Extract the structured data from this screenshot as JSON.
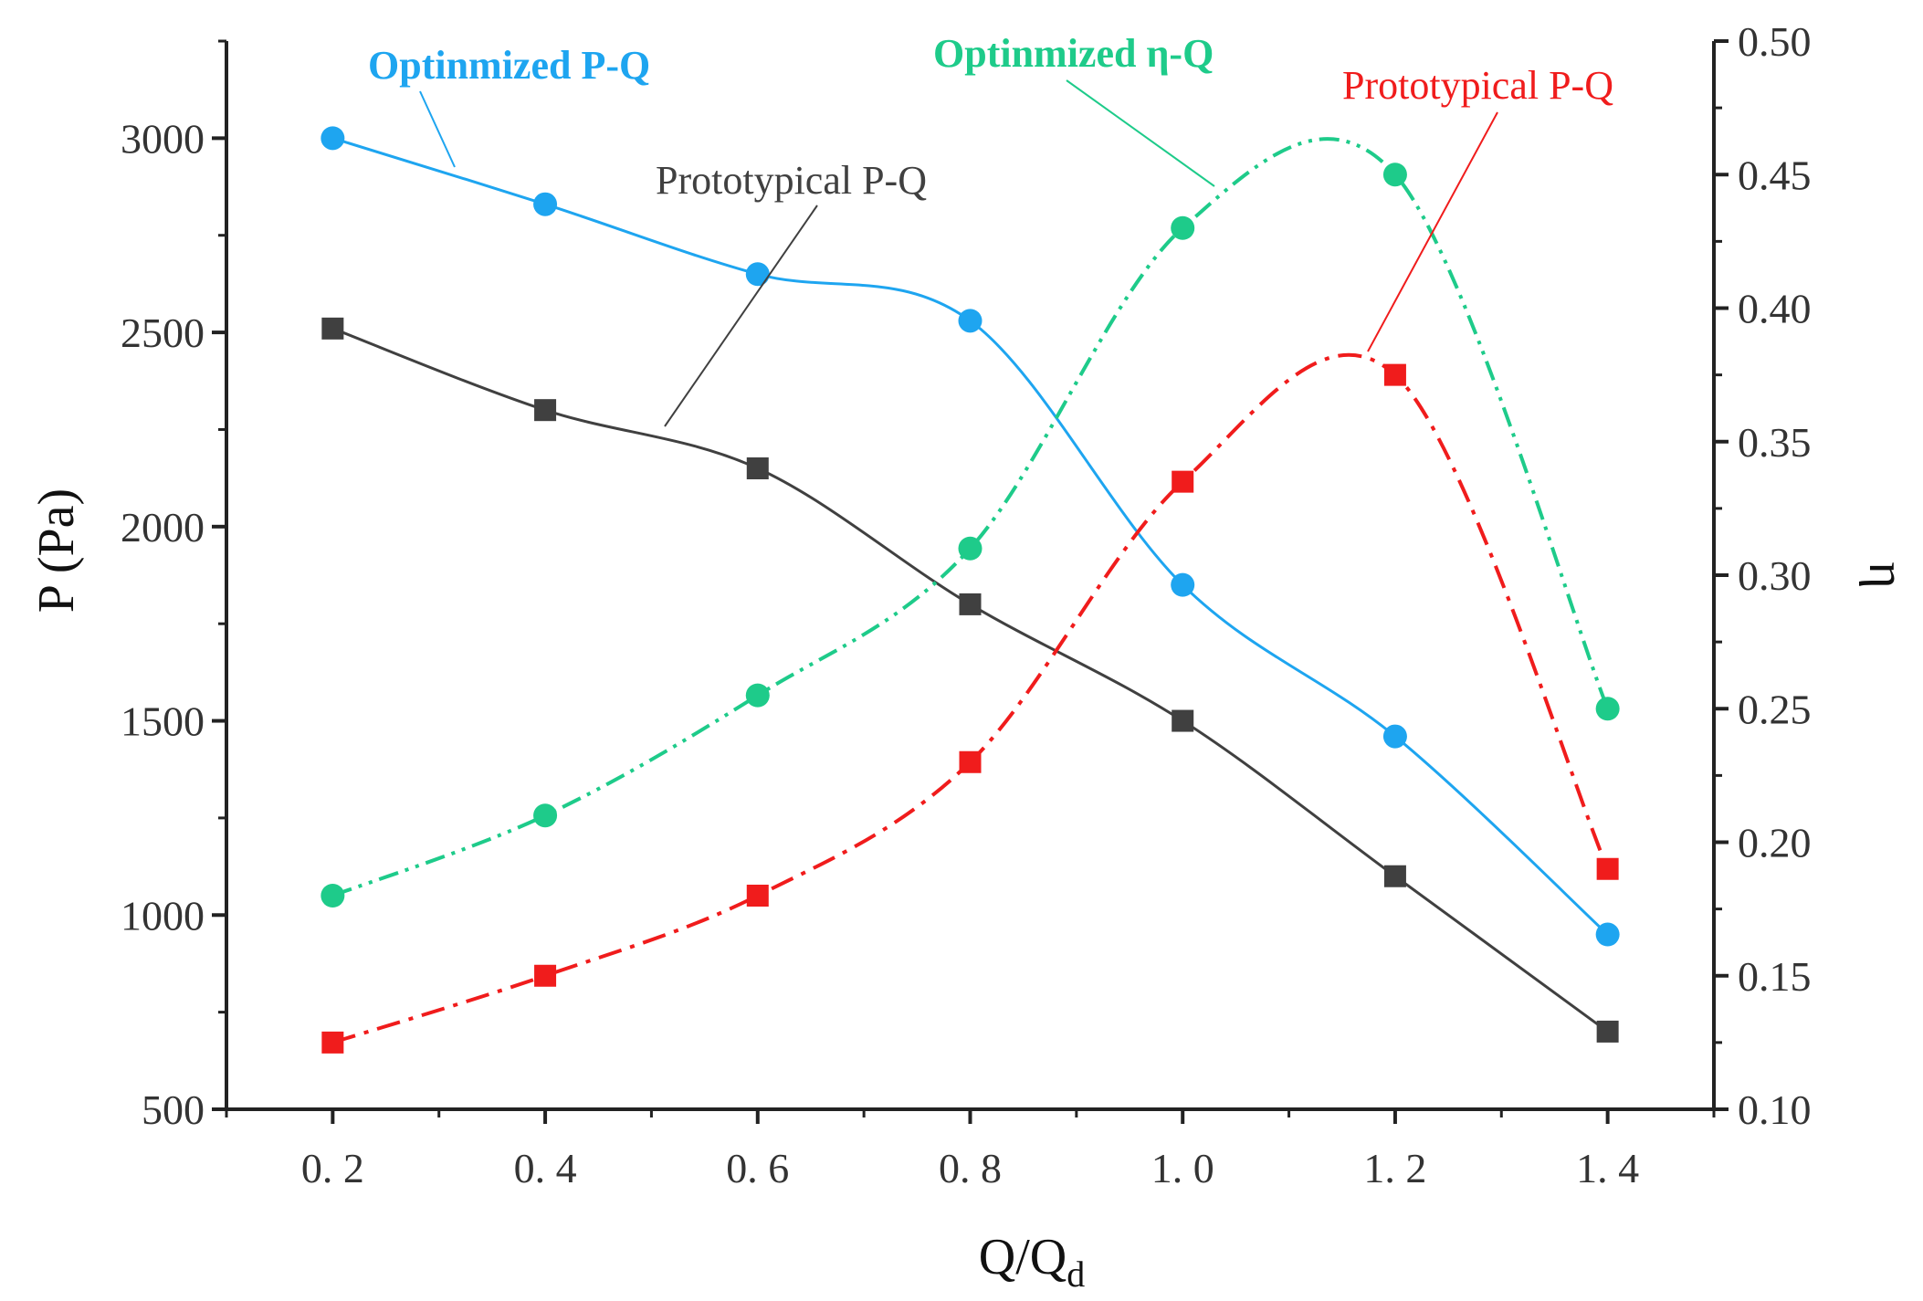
{
  "chart_data": {
    "type": "line",
    "x": [
      0.2,
      0.4,
      0.6,
      0.8,
      1.0,
      1.2,
      1.4
    ],
    "x_tick_labels": [
      "0. 2",
      "0. 4",
      "0. 6",
      "0. 8",
      "1. 0",
      "1. 2",
      "1. 4"
    ],
    "xlim": [
      0.1,
      1.5
    ],
    "xlabel": "Q/Q",
    "xlabel_subscript": "d",
    "y_left": {
      "label": "P (Pa)",
      "lim": [
        500,
        3250
      ],
      "ticks": [
        500,
        1000,
        1500,
        2000,
        2500,
        3000
      ],
      "tick_labels": [
        "500",
        "1000",
        "1500",
        "2000",
        "2500",
        "3000"
      ]
    },
    "y_right": {
      "label": "η",
      "lim": [
        0.1,
        0.5
      ],
      "ticks": [
        0.1,
        0.15,
        0.2,
        0.25,
        0.3,
        0.35,
        0.4,
        0.45,
        0.5
      ],
      "tick_labels": [
        "0.10",
        "0.15",
        "0.20",
        "0.25",
        "0.30",
        "0.35",
        "0.40",
        "0.45",
        "0.50"
      ]
    },
    "series": [
      {
        "name": "Optinmized P-Q",
        "axis": "left",
        "color": "#1ea5f0",
        "marker": "circle",
        "line_style": "solid",
        "values": [
          3000,
          2830,
          2650,
          2530,
          1850,
          1460,
          950
        ]
      },
      {
        "name": "Prototypical P-Q",
        "axis": "left",
        "color": "#404040",
        "marker": "square",
        "line_style": "solid",
        "values": [
          2510,
          2300,
          2150,
          1800,
          1500,
          1100,
          700
        ]
      },
      {
        "name": "Optinmized η-Q",
        "axis": "right",
        "color": "#1ecb8a",
        "marker": "circle",
        "line_style": "dash-dot-dot",
        "values": [
          0.18,
          0.21,
          0.255,
          0.31,
          0.43,
          0.45,
          0.25
        ]
      },
      {
        "name": "Prototypical P-Q",
        "axis": "right",
        "color": "#f01c1c",
        "marker": "square",
        "line_style": "dash-dot",
        "values": [
          0.125,
          0.15,
          0.18,
          0.23,
          0.335,
          0.375,
          0.19
        ]
      }
    ],
    "annotations": [
      {
        "series": 0,
        "text": "Optinmized P-Q",
        "color": "#1ea5f0",
        "bold": true
      },
      {
        "series": 1,
        "text": "Prototypical P-Q",
        "color": "#404040",
        "bold": false
      },
      {
        "series": 2,
        "text": "Optinmized η-Q",
        "color": "#1ecb8a",
        "bold": true
      },
      {
        "series": 3,
        "text": "Prototypical P-Q",
        "color": "#f01c1c",
        "bold": false
      }
    ]
  }
}
